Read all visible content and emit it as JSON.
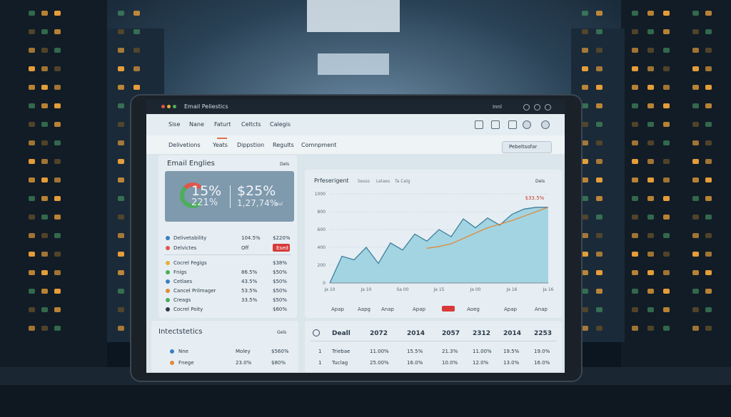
{
  "window": {
    "title": "Email Peliestics",
    "user": "Innl"
  },
  "nav": [
    "Sise",
    "Nane",
    "Faturt",
    "Celtcts",
    "Calegis"
  ],
  "tabs": [
    "Delivetions",
    "Yeats",
    "Dippstion",
    "Regults",
    "Comnpment"
  ],
  "dropdown": "Pebeltsofar",
  "summary": {
    "title": "Email Englies",
    "button": "Dels",
    "metrics": [
      "15%",
      "221%",
      "$25%",
      "1,27,74%",
      "Nul"
    ]
  },
  "list": {
    "rows": [
      [
        "Delivetability",
        "104.5%",
        "$220%"
      ],
      [
        "Delvictes",
        "Off",
        "Esed"
      ],
      [
        "Cocrel Fegigs",
        "",
        "$38%"
      ],
      [
        "Fnigs",
        "86.5%",
        "$50%"
      ],
      [
        "Cetlaes",
        "43.5%",
        "$50%"
      ],
      [
        "Cancel Prilmager",
        "53.5%",
        "$50%"
      ],
      [
        "Creags",
        "33.5%",
        "$50%"
      ],
      [
        "Cocrel Poity",
        "",
        "$60%"
      ]
    ]
  },
  "chart": {
    "title": "Prfeserigent",
    "legend": [
      "Sesss",
      "Lelaes",
      "Ta Celg"
    ],
    "button": "Dels",
    "annotation": "$33.5%",
    "ylim": [
      0,
      1000
    ],
    "yticks": [
      0,
      200,
      400,
      600,
      800,
      1000
    ],
    "xticks": [
      "Ja 10",
      "Ja 10",
      "Sa 00",
      "Ja 15",
      "Ja 00",
      "Ja 16",
      "Ja 16"
    ],
    "series": [
      {
        "color": "#8ccbdc",
        "values": [
          0,
          300,
          260,
          400,
          220,
          450,
          370,
          550,
          470,
          600,
          520,
          720,
          620,
          730,
          650,
          770,
          830,
          850,
          850
        ]
      },
      {
        "color": "#e08a3a",
        "values": [
          null,
          null,
          null,
          null,
          null,
          null,
          null,
          null,
          390,
          410,
          440,
          500,
          560,
          620,
          660,
          700,
          750,
          800,
          850
        ]
      }
    ],
    "footer": [
      "Apap",
      "Aapg",
      "Anap",
      "Apap",
      "Aoeg",
      "Apap",
      "Anap"
    ]
  },
  "stats": {
    "title": "Intectstetics",
    "button": "Gels",
    "rows": [
      [
        "Nne",
        "Moley",
        "$560%"
      ],
      [
        "Fnege",
        "23.0%",
        "$80%"
      ]
    ]
  },
  "table": {
    "header": [
      "Deall",
      "2072",
      "2014",
      "2057",
      "2312",
      "2014",
      "2253"
    ],
    "rows": [
      [
        "1",
        "Triebae",
        "11.00%",
        "15.5%",
        "21.3%",
        "11.00%",
        "19.5%",
        "19.0%"
      ],
      [
        "1",
        "Tuclag",
        "25.00%",
        "16.0%",
        "10.0%",
        "12.0%",
        "13.0%",
        "16.0%"
      ]
    ]
  }
}
